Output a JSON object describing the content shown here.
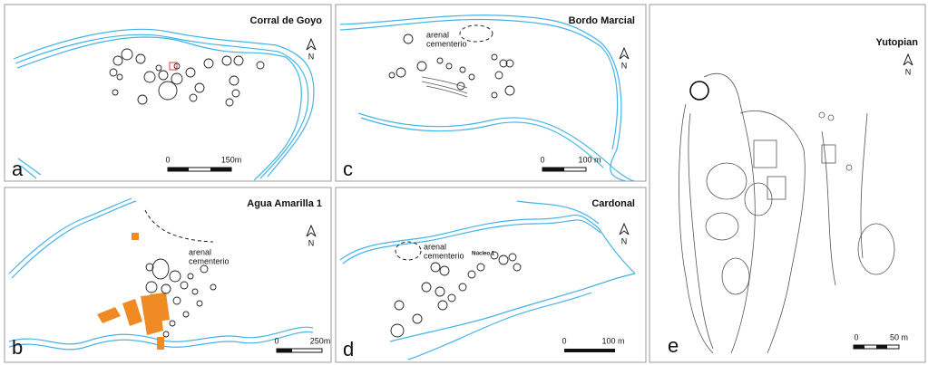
{
  "panels": [
    {
      "letter": "a",
      "title": "Corral de Goyo",
      "north": "N",
      "scale": [
        "0",
        "150m"
      ]
    },
    {
      "letter": "b",
      "title": "Agua Amarilla 1",
      "north": "N",
      "annotation": [
        "arenal",
        "cementerio"
      ],
      "scale": [
        "0",
        "250m"
      ]
    },
    {
      "letter": "c",
      "title": "Bordo Marcial",
      "north": "N",
      "annotation": [
        "arenal",
        "cementerio"
      ],
      "scale": [
        "0",
        "100 m"
      ]
    },
    {
      "letter": "d",
      "title": "Cardonal",
      "north": "N",
      "annotation": [
        "arenal",
        "cementerio"
      ],
      "label": "Núcleo 1",
      "scale": [
        "0",
        "100 m"
      ]
    },
    {
      "letter": "e",
      "title": "Yutopian",
      "north": "N",
      "scale": [
        "0",
        "50 m"
      ]
    }
  ]
}
